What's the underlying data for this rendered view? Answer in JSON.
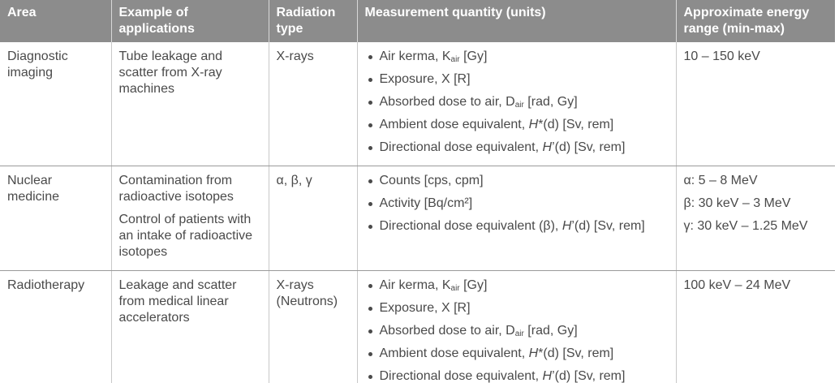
{
  "table": {
    "headers": [
      "Area",
      "Example of applications",
      "Radiation type",
      "Measurement quantity (units)",
      "Approximate energy range (min-max)"
    ],
    "rows": [
      {
        "area": "Diagnostic imaging",
        "applications": [
          "Tube leakage and scatter from X-ray machines"
        ],
        "radiation": "X-rays",
        "quantities": [
          [
            "Air kerma, K",
            {
              "sub": "air"
            },
            " [Gy]"
          ],
          [
            "Exposure, X [R]"
          ],
          [
            "Absorbed dose to air, D",
            {
              "sub": "air"
            },
            " [rad, Gy]"
          ],
          [
            "Ambient dose equivalent, ",
            {
              "em": "H"
            },
            "*(d) [Sv, rem]"
          ],
          [
            "Directional dose equivalent, ",
            {
              "em": "H"
            },
            "’(d) [Sv, rem]"
          ]
        ],
        "energy": [
          "10 – 150 keV"
        ]
      },
      {
        "area": "Nuclear medicine",
        "applications": [
          "Contamination from radioactive isotopes",
          "Control of patients with an intake of radioactive isotopes"
        ],
        "radiation": "α, β, γ",
        "quantities": [
          [
            "Counts [cps, cpm]"
          ],
          [
            "Activity [Bq/cm²]"
          ],
          [
            "Directional dose equivalent (β), ",
            {
              "em": "H"
            },
            "’(d) [Sv, rem]"
          ]
        ],
        "energy": [
          "α: 5 – 8 MeV",
          "β: 30 keV – 3 MeV",
          "γ: 30 keV – 1.25 MeV"
        ]
      },
      {
        "area": "Radiotherapy",
        "applications": [
          "Leakage and scatter from medical linear accelerators"
        ],
        "radiation": "X-rays (Neutrons)",
        "quantities": [
          [
            "Air kerma, K",
            {
              "sub": "air"
            },
            " [Gy]"
          ],
          [
            "Exposure, X [R]"
          ],
          [
            "Absorbed dose to air, D",
            {
              "sub": "air"
            },
            " [rad, Gy]"
          ],
          [
            "Ambient dose equivalent, ",
            {
              "em": "H"
            },
            "*(d) [Sv, rem]"
          ],
          [
            "Directional dose equivalent, ",
            {
              "em": "H"
            },
            "’(d) [Sv, rem]"
          ]
        ],
        "energy": [
          "100 keV – 24 MeV"
        ]
      }
    ]
  }
}
